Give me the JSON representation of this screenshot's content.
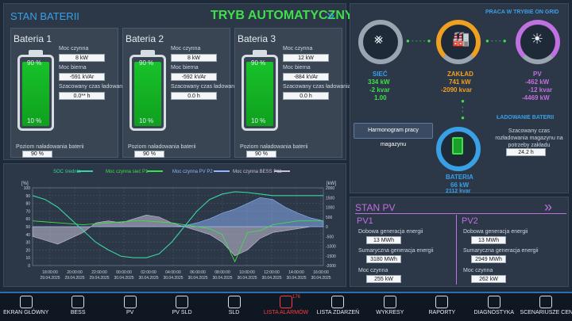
{
  "header": {
    "title": "STAN BATERII",
    "mode": "TRYB AUTOMATYCZNY"
  },
  "batteries": [
    {
      "name": "Bateria 1",
      "fill_pct": 0.9,
      "top_mark": "90 %",
      "bottom_mark": "10 %",
      "active_power_label": "Moc czynna",
      "active_power": "8 kW",
      "reactive_power_label": "Moc bierna",
      "reactive_power": "-591 kVAr",
      "charge_time_label": "Szacowany czas ładowania",
      "charge_time": "0.0** h",
      "soc_label": "Poziom naładowania baterii",
      "soc": "90 %"
    },
    {
      "name": "Bateria 2",
      "fill_pct": 0.9,
      "top_mark": "90 %",
      "bottom_mark": "10 %",
      "active_power_label": "Moc czynna",
      "active_power": "8 kW",
      "reactive_power_label": "Moc bierna",
      "reactive_power": "-592 kVAr",
      "charge_time_label": "Szacowany czas ładowania",
      "charge_time": "0.0 h",
      "soc_label": "Poziom naładowania baterii",
      "soc": "90 %"
    },
    {
      "name": "Bateria 3",
      "fill_pct": 0.9,
      "top_mark": "90 %",
      "bottom_mark": "10 %",
      "active_power_label": "Moc czynna",
      "active_power": "12 kW",
      "reactive_power_label": "Moc bierna",
      "reactive_power": "-884 kVAr",
      "charge_time_label": "Szacowany czas ładowania",
      "charge_time": "0.0 h",
      "soc_label": "Poziom naładowania baterii",
      "soc": "90 %"
    }
  ],
  "grid_panel": {
    "status": "PRACA W TRYBIE ON GRID",
    "siec": {
      "name": "SIEĆ",
      "v1": "334 kW",
      "v2": "-2 kvar",
      "v3": "1.00"
    },
    "zaklad": {
      "name": "ZAKŁAD",
      "v1": "741 kW",
      "v2": "-2090 kvar"
    },
    "pv": {
      "name": "PV",
      "v1": "-462 kW",
      "v2": "-12 kvar",
      "v3": "-4469 kW"
    },
    "schedule_button": "Harmonogram pracy magazynu",
    "charging_title": "ŁADOWANIE BATERII",
    "discharge_label": "Szacowany czas rozładowania magazynu na potrzeby zakładu",
    "discharge_value": "24.2 h",
    "bateria": {
      "name": "BATERIA",
      "v1": "66 kW",
      "v2": "2112 kvar"
    },
    "colors": {
      "accent": "#3aa0e6",
      "green": "#3ee04a",
      "orange": "#f0a020",
      "purple": "#c070e0"
    }
  },
  "pv_panel": {
    "title": "STAN PV",
    "pv1": {
      "name": "PV1",
      "daily_label": "Dobowa generacja energii",
      "daily": "13 MWh",
      "total_label": "Sumaryczna generacja energii",
      "total": "3180 MWh",
      "power_label": "Moc czynna",
      "power": "255 kW"
    },
    "pv2": {
      "name": "PV2",
      "daily_label": "Dobowa generacja energii",
      "daily": "13 MWh",
      "total_label": "Sumaryczna generacja energii",
      "total": "2949 MWh",
      "power_label": "Moc czynna",
      "power": "262 kW"
    }
  },
  "chart_data": {
    "type": "line",
    "legend": [
      "SOC średnia",
      "Moc czynna sieć P1",
      "Moc czynna PV P2",
      "Moc czynna BESS P11"
    ],
    "left_unit": "[%]",
    "right_unit": "[kW]",
    "left_ticks": [
      "100",
      "90",
      "80",
      "70",
      "60",
      "50",
      "40",
      "30",
      "20",
      "10",
      "0"
    ],
    "right_ticks": [
      "2000",
      "1500",
      "1000",
      "500",
      "0",
      "-500",
      "-1000",
      "-1500",
      "-2000"
    ],
    "x_ticks": [
      {
        "time": "18:00:00",
        "date": "29.04.2025"
      },
      {
        "time": "20:00:00",
        "date": "29.04.2025"
      },
      {
        "time": "22:00:00",
        "date": "29.04.2025"
      },
      {
        "time": "00:00:00",
        "date": "30.04.2025"
      },
      {
        "time": "02:00:00",
        "date": "30.04.2025"
      },
      {
        "time": "04:00:00",
        "date": "30.04.2025"
      },
      {
        "time": "06:00:00",
        "date": "30.04.2025"
      },
      {
        "time": "08:00:00",
        "date": "30.04.2025"
      },
      {
        "time": "10:00:00",
        "date": "30.04.2025"
      },
      {
        "time": "12:00:00",
        "date": "30.04.2025"
      },
      {
        "time": "14:00:00",
        "date": "30.04.2025"
      },
      {
        "time": "16:00:00",
        "date": "30.04.2025"
      }
    ],
    "soc": [
      90,
      85,
      75,
      60,
      45,
      30,
      20,
      12,
      10,
      10,
      15,
      30,
      50,
      70,
      85,
      92,
      95,
      94,
      92,
      90,
      90,
      90,
      90,
      90
    ],
    "grid_p": [
      300,
      250,
      200,
      150,
      100,
      150,
      200,
      250,
      300,
      300,
      250,
      200,
      100,
      0,
      -100,
      -400,
      -1800,
      -300,
      -200,
      100,
      200,
      300,
      300,
      300
    ],
    "pv_p": [
      0,
      0,
      0,
      0,
      0,
      0,
      0,
      0,
      0,
      0,
      0,
      0,
      50,
      200,
      400,
      700,
      900,
      1200,
      1500,
      1400,
      1000,
      700,
      450,
      300
    ],
    "bess_p": [
      -500,
      -700,
      -900,
      -600,
      -300,
      200,
      300,
      200,
      400,
      600,
      500,
      200,
      0,
      -200,
      -400,
      -800,
      -1500,
      -1200,
      -600,
      -300,
      -200,
      -100,
      0,
      0
    ],
    "colors": {
      "soc": "#3ad6a0",
      "grid": "#3ee04a",
      "pv": "#8fb7ff",
      "bess": "#c9c2d8"
    }
  },
  "nav": [
    {
      "label": "EKRAN GŁÓWNY",
      "icon": "home-icon"
    },
    {
      "label": "BESS",
      "icon": "bess-icon"
    },
    {
      "label": "PV",
      "icon": "solar-panel-icon"
    },
    {
      "label": "PV SLD",
      "icon": "pv-sld-icon"
    },
    {
      "label": "SLD",
      "icon": "sld-icon"
    },
    {
      "label": "LISTA ALARMÓW",
      "icon": "alarm-icon",
      "badge": "176"
    },
    {
      "label": "LISTA ZDARZEŃ",
      "icon": "event-list-icon"
    },
    {
      "label": "WYKRESY",
      "icon": "chart-icon"
    },
    {
      "label": "RAPORTY",
      "icon": "report-icon"
    },
    {
      "label": "DIAGNOSTYKA",
      "icon": "diagnostics-icon"
    },
    {
      "label": "SCENARIUSZE CENOWE",
      "icon": "price-icon"
    }
  ]
}
